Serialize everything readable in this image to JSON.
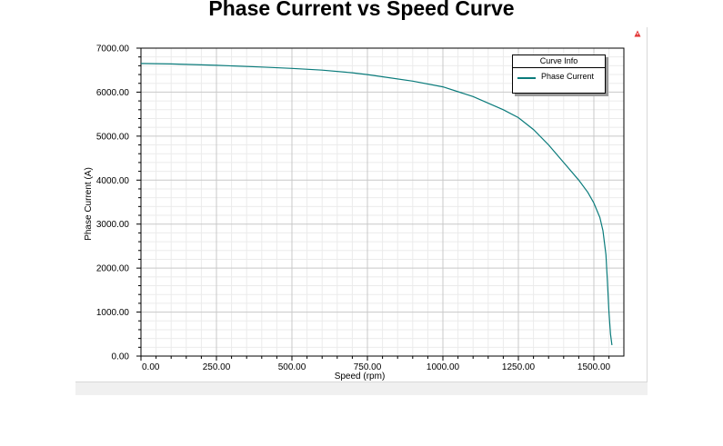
{
  "chart_data": {
    "type": "line",
    "title": "Phase Current vs Speed Curve",
    "xlabel": "Speed (rpm)",
    "ylabel": "Phase Current (A)",
    "xlim": [
      0,
      1600
    ],
    "ylim": [
      0,
      7000
    ],
    "x_ticks": [
      "0.00",
      "250.00",
      "500.00",
      "750.00",
      "1000.00",
      "1250.00",
      "1500.00"
    ],
    "y_ticks": [
      "0.00",
      "1000.00",
      "2000.00",
      "3000.00",
      "4000.00",
      "5000.00",
      "6000.00",
      "7000.00"
    ],
    "grid": true,
    "legend": {
      "title": "Curve Info",
      "placement": "top-right"
    },
    "series": [
      {
        "name": "Phase Current",
        "color": "#0a7b7b",
        "x": [
          0,
          100,
          250,
          400,
          500,
          600,
          700,
          750,
          800,
          900,
          1000,
          1100,
          1200,
          1250,
          1300,
          1350,
          1400,
          1450,
          1480,
          1500,
          1520,
          1530,
          1540,
          1545,
          1550,
          1555,
          1560
        ],
        "y": [
          6650,
          6640,
          6610,
          6570,
          6540,
          6500,
          6440,
          6400,
          6350,
          6250,
          6120,
          5900,
          5600,
          5420,
          5150,
          4800,
          4400,
          4000,
          3720,
          3480,
          3150,
          2850,
          2300,
          1700,
          1000,
          500,
          250
        ]
      }
    ]
  },
  "icons": {
    "warning": "warning-triangle-icon"
  }
}
